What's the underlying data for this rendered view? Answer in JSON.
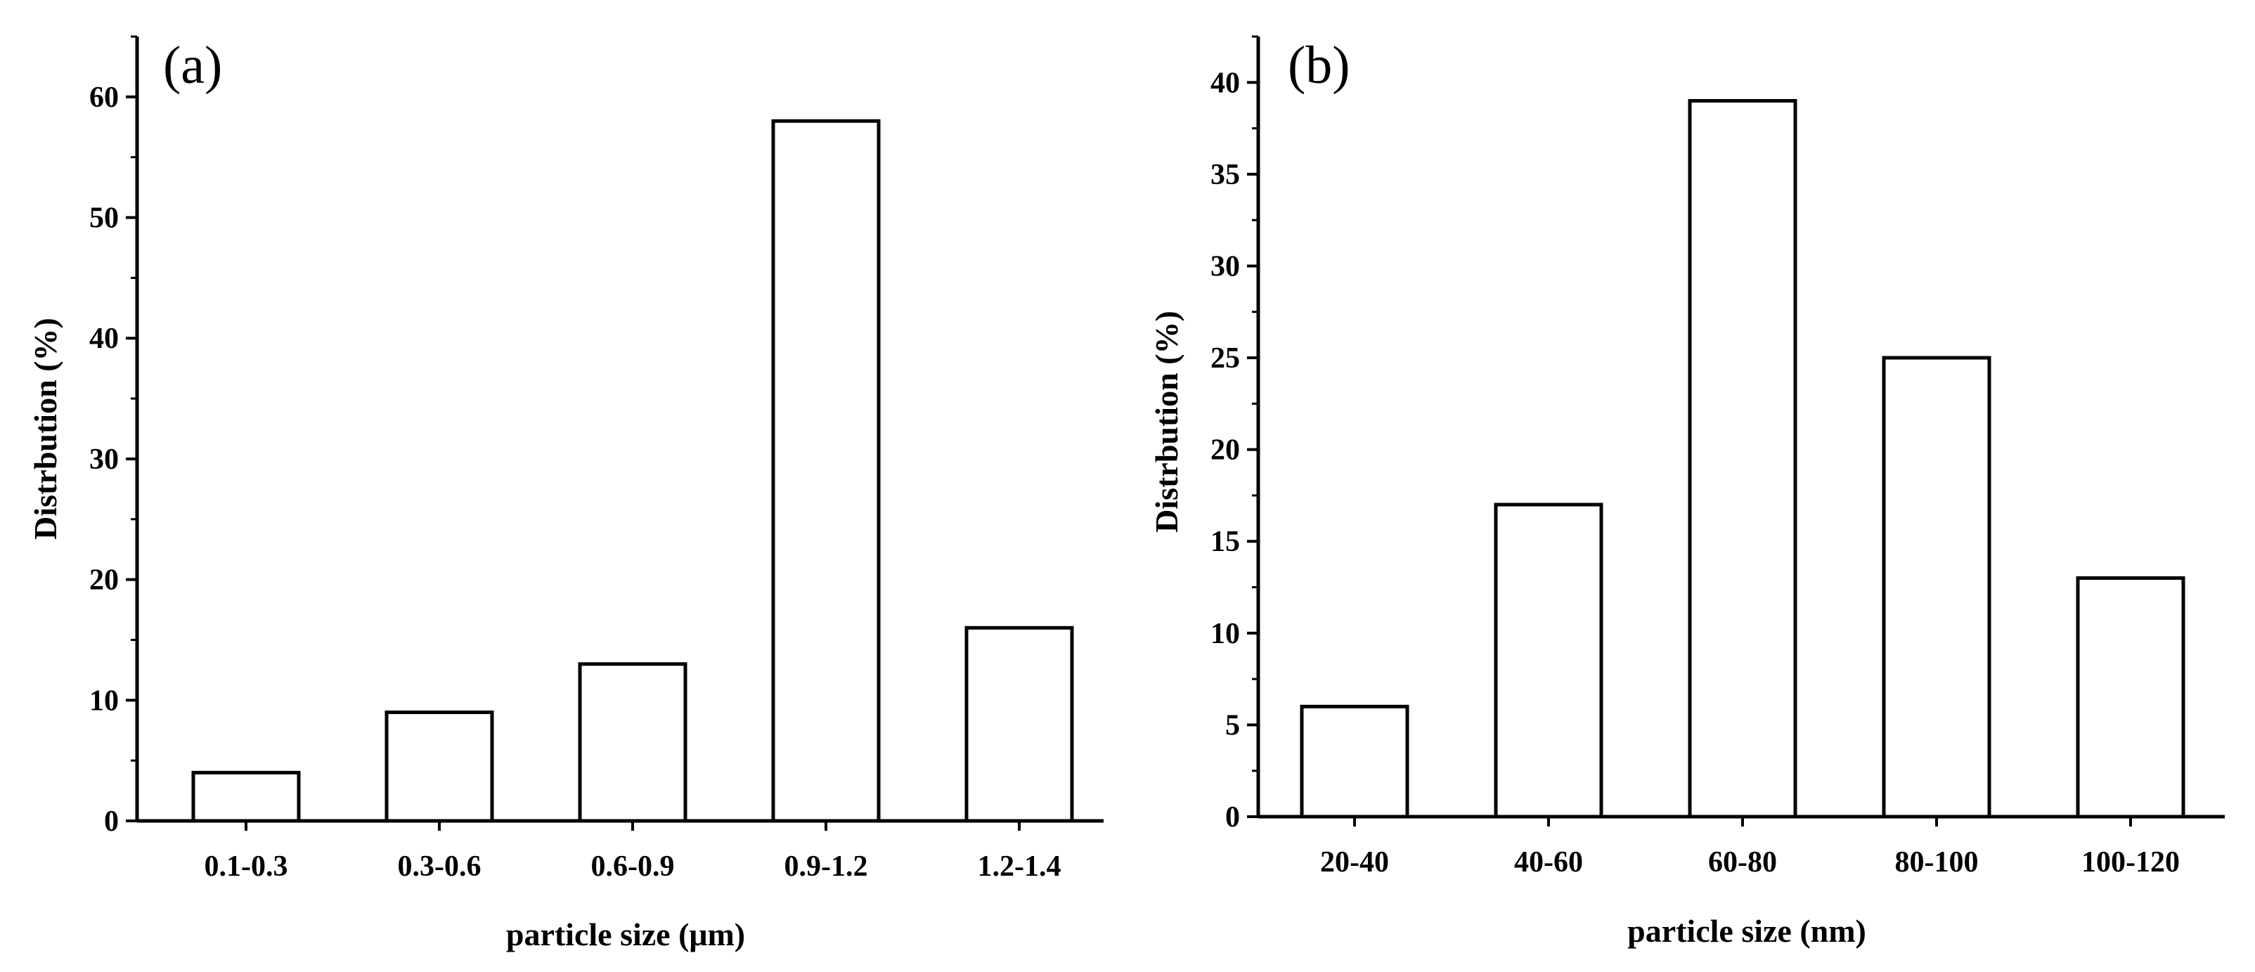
{
  "chart_data": [
    {
      "type": "bar",
      "panel_label": "(a)",
      "xlabel": "particle size (μm)",
      "ylabel": "Distrbution (%)",
      "categories": [
        "0.1-0.3",
        "0.3-0.6",
        "0.6-0.9",
        "0.9-1.2",
        "1.2-1.4"
      ],
      "values": [
        4,
        9,
        13,
        58,
        16
      ],
      "ylim": [
        0,
        65
      ],
      "yticks": [
        0,
        10,
        20,
        30,
        40,
        50,
        60
      ],
      "ytick_labels": [
        "0",
        "10",
        "20",
        "30",
        "40",
        "50",
        "60"
      ],
      "bar_fill": "#ffffff",
      "bar_edge": "#000000"
    },
    {
      "type": "bar",
      "panel_label": "(b)",
      "xlabel": "particle size (nm)",
      "ylabel": "Distrbution (%)",
      "categories": [
        "20-40",
        "40-60",
        "60-80",
        "80-100",
        "100-120"
      ],
      "values": [
        6,
        17,
        39,
        25,
        13
      ],
      "ylim": [
        0,
        42.5
      ],
      "yticks": [
        0,
        5,
        10,
        15,
        20,
        25,
        30,
        35,
        40
      ],
      "ytick_labels": [
        "0",
        "5",
        "10",
        "15",
        "20",
        "25",
        "30",
        "35",
        "40"
      ],
      "bar_fill": "#ffffff",
      "bar_edge": "#000000"
    }
  ]
}
